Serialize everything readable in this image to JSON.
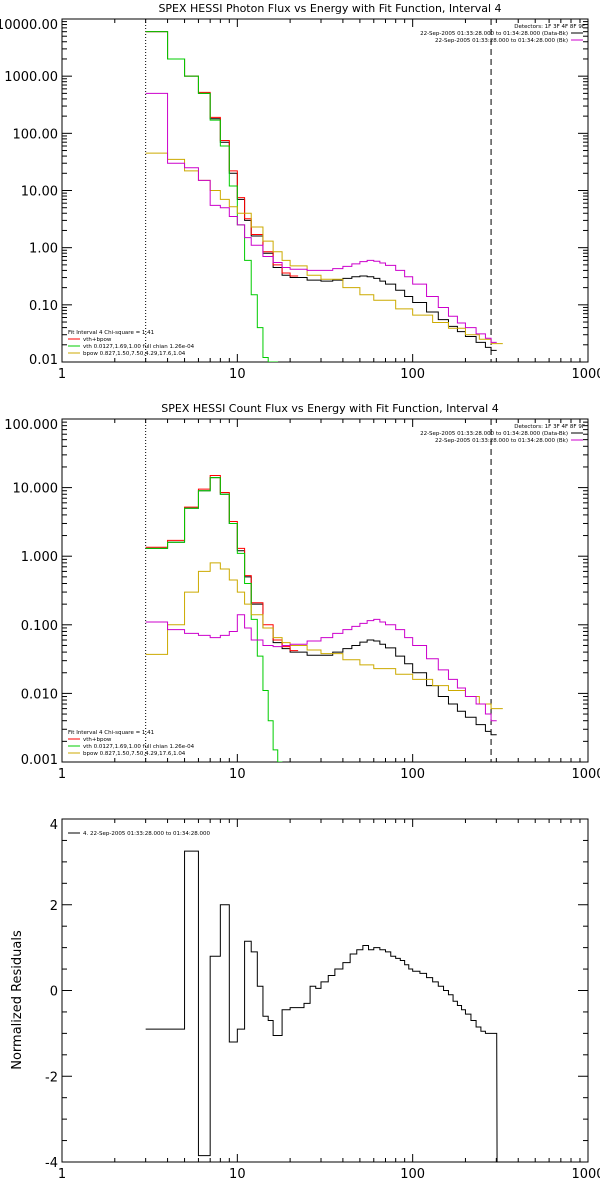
{
  "chart_data": [
    {
      "type": "line",
      "title": "SPEX HESSI Photon Flux vs Energy with Fit Function, Interval 4",
      "xscale": "log",
      "yscale": "log",
      "xlim": [
        1,
        1000
      ],
      "ylim": [
        0.01,
        10000
      ],
      "xticks": [
        1,
        10,
        100,
        1000
      ],
      "xtick_labels": [
        "1",
        "10",
        "100",
        "1000"
      ],
      "yticks": [
        0.01,
        0.1,
        1,
        10,
        100,
        1000,
        10000
      ],
      "ytick_labels": [
        "0.01",
        "0.10",
        "1.00",
        "10.00",
        "100.00",
        "1000.00",
        "10000.00"
      ],
      "vlines": [
        {
          "x": 3.0,
          "style": "dotted",
          "color": "#000000"
        },
        {
          "x": 280,
          "style": "dashed",
          "color": "#000000"
        }
      ],
      "legend_top_right": {
        "header": "Detectors: 1F 3F 4F 8F 9F",
        "lines": [
          {
            "text": "22-Sep-2005 01:33:28.000 to 01:34:28.000 (Data-Bk)",
            "color": "#000000"
          },
          {
            "text": "22-Sep-2005 01:33:28.000 to 01:34:28.000 (Bk)",
            "color": "#cc00cc"
          }
        ]
      },
      "legend_bottom_left": {
        "header": "Fit Interval 4   Chi-square = 1.41",
        "lines": [
          {
            "text": "vth+bpow",
            "color": "#ff0000"
          },
          {
            "text": "vth 0.0127,1.69,1.00  full chian 1.26e-04",
            "color": "#00cc00"
          },
          {
            "text": "bpow 0.827,1.50,7.50,4.29,17.6,1.04",
            "color": "#ccaa00"
          }
        ]
      },
      "series": [
        {
          "name": "Data-Bk",
          "color": "#000000",
          "step": true,
          "x": [
            3,
            4,
            5,
            6,
            7,
            8,
            9,
            10,
            11,
            12,
            14,
            16,
            18,
            20,
            25,
            30,
            35,
            40,
            45,
            50,
            55,
            60,
            65,
            70,
            80,
            90,
            100,
            120,
            140,
            160,
            180,
            200,
            230,
            260,
            280
          ],
          "y": [
            6000,
            2000,
            1000,
            500,
            180,
            70,
            20,
            7,
            3,
            1.6,
            0.8,
            0.45,
            0.33,
            0.3,
            0.27,
            0.26,
            0.27,
            0.29,
            0.31,
            0.32,
            0.31,
            0.29,
            0.26,
            0.23,
            0.18,
            0.14,
            0.11,
            0.075,
            0.055,
            0.042,
            0.034,
            0.028,
            0.022,
            0.018,
            0.016
          ]
        },
        {
          "name": "vth+bpow",
          "color": "#ff0000",
          "step": true,
          "x": [
            3,
            4,
            5,
            6,
            7,
            8,
            9,
            10,
            11,
            12,
            14,
            16,
            18,
            20
          ],
          "y": [
            6000,
            2000,
            1000,
            520,
            190,
            75,
            22,
            7.5,
            3.2,
            1.7,
            0.85,
            0.5,
            0.36,
            0.32
          ]
        },
        {
          "name": "vth",
          "color": "#00cc00",
          "step": true,
          "x": [
            3,
            4,
            5,
            6,
            7,
            8,
            9,
            10,
            11,
            12,
            13,
            14,
            15,
            16
          ],
          "y": [
            6000,
            2000,
            1000,
            500,
            170,
            60,
            12,
            2.5,
            0.6,
            0.15,
            0.04,
            0.012,
            0.01,
            0.01
          ]
        },
        {
          "name": "bpow",
          "color": "#ccaa00",
          "step": true,
          "x": [
            3,
            4,
            5,
            6,
            7,
            8,
            9,
            10,
            12,
            14,
            16,
            18,
            20,
            25,
            30,
            40,
            50,
            60,
            80,
            100,
            130,
            160,
            200,
            240,
            280
          ],
          "y": [
            45,
            35,
            22,
            15,
            10,
            7,
            5.2,
            4,
            2.3,
            1.3,
            0.85,
            0.6,
            0.48,
            0.33,
            0.28,
            0.2,
            0.15,
            0.12,
            0.085,
            0.066,
            0.049,
            0.039,
            0.03,
            0.025,
            0.021
          ]
        },
        {
          "name": "Bk",
          "color": "#cc00cc",
          "step": true,
          "x": [
            3,
            4,
            5,
            6,
            7,
            8,
            9,
            10,
            11,
            12,
            14,
            16,
            18,
            20,
            25,
            30,
            35,
            40,
            45,
            50,
            55,
            60,
            65,
            70,
            80,
            90,
            100,
            120,
            140,
            160,
            180,
            200,
            230,
            260,
            280
          ],
          "y": [
            500,
            30,
            25,
            15,
            5.5,
            5,
            3.5,
            2.5,
            1.5,
            1.1,
            0.7,
            0.55,
            0.45,
            0.42,
            0.4,
            0.4,
            0.43,
            0.47,
            0.52,
            0.57,
            0.6,
            0.58,
            0.54,
            0.49,
            0.4,
            0.31,
            0.23,
            0.14,
            0.09,
            0.063,
            0.048,
            0.04,
            0.031,
            0.026,
            0.022
          ]
        }
      ]
    },
    {
      "type": "line",
      "title": "SPEX HESSI Count Flux vs Energy with Fit Function, Interval 4",
      "xscale": "log",
      "yscale": "log",
      "xlim": [
        1,
        1000
      ],
      "ylim": [
        0.001,
        100
      ],
      "xticks": [
        1,
        10,
        100,
        1000
      ],
      "xtick_labels": [
        "1",
        "10",
        "100",
        "1000"
      ],
      "yticks": [
        0.001,
        0.01,
        0.1,
        1,
        10,
        100
      ],
      "ytick_labels": [
        "0.001",
        "0.010",
        "0.100",
        "1.000",
        "10.000",
        "100.000"
      ],
      "vlines": [
        {
          "x": 3.0,
          "style": "dotted",
          "color": "#000000"
        },
        {
          "x": 280,
          "style": "dashed",
          "color": "#000000"
        }
      ],
      "legend_top_right": {
        "header": "Detectors: 1F 3F 4F 8F 9F",
        "lines": [
          {
            "text": "22-Sep-2005 01:33:28.000 to 01:34:28.000 (Data-Bk)",
            "color": "#000000"
          },
          {
            "text": "22-Sep-2005 01:33:28.000 to 01:34:28.000 (Bk)",
            "color": "#cc00cc"
          }
        ]
      },
      "legend_bottom_left": {
        "header": "Fit Interval 4   Chi-square = 1.41",
        "lines": [
          {
            "text": "vth+bpow",
            "color": "#ff0000"
          },
          {
            "text": "vth 0.0127,1.69,1.00  full chian 1.26e-04",
            "color": "#00cc00"
          },
          {
            "text": "bpow 0.827,1.50,7.50,4.29,17.6,1.04",
            "color": "#ccaa00"
          }
        ]
      },
      "series": [
        {
          "name": "Data-Bk",
          "color": "#000000",
          "step": true,
          "x": [
            3,
            4,
            5,
            6,
            7,
            8,
            9,
            10,
            11,
            12,
            14,
            16,
            18,
            20,
            25,
            30,
            35,
            40,
            45,
            50,
            55,
            60,
            65,
            70,
            80,
            90,
            100,
            120,
            140,
            160,
            180,
            200,
            230,
            260,
            280
          ],
          "y": [
            1.3,
            1.6,
            5,
            9,
            14,
            8,
            3,
            1.2,
            0.5,
            0.2,
            0.09,
            0.055,
            0.045,
            0.04,
            0.036,
            0.036,
            0.04,
            0.045,
            0.05,
            0.056,
            0.06,
            0.058,
            0.052,
            0.046,
            0.035,
            0.027,
            0.02,
            0.013,
            0.009,
            0.007,
            0.0055,
            0.0045,
            0.0035,
            0.0028,
            0.0025
          ]
        },
        {
          "name": "vth+bpow",
          "color": "#ff0000",
          "step": true,
          "x": [
            3,
            4,
            5,
            6,
            7,
            8,
            9,
            10,
            11,
            12,
            14,
            16,
            18,
            20
          ],
          "y": [
            1.35,
            1.7,
            5.2,
            9.5,
            15,
            8.5,
            3.2,
            1.3,
            0.52,
            0.21,
            0.1,
            0.06,
            0.048,
            0.042
          ]
        },
        {
          "name": "vth",
          "color": "#00cc00",
          "step": true,
          "x": [
            3,
            4,
            5,
            6,
            7,
            8,
            9,
            10,
            11,
            12,
            13,
            14,
            15,
            16,
            17
          ],
          "y": [
            1.3,
            1.6,
            5,
            9,
            14,
            8,
            3,
            1.1,
            0.4,
            0.12,
            0.035,
            0.011,
            0.004,
            0.0015,
            0.001
          ]
        },
        {
          "name": "bpow",
          "color": "#ccaa00",
          "step": true,
          "x": [
            3,
            4,
            5,
            6,
            7,
            8,
            9,
            10,
            11,
            12,
            14,
            16,
            18,
            20,
            25,
            30,
            40,
            50,
            60,
            80,
            100,
            130,
            160,
            200,
            240,
            280
          ],
          "y": [
            0.037,
            0.1,
            0.3,
            0.6,
            0.8,
            0.65,
            0.45,
            0.3,
            0.2,
            0.14,
            0.09,
            0.065,
            0.055,
            0.05,
            0.043,
            0.038,
            0.031,
            0.026,
            0.023,
            0.019,
            0.016,
            0.013,
            0.011,
            0.009,
            0.007,
            0.006
          ]
        },
        {
          "name": "Bk",
          "color": "#cc00cc",
          "step": true,
          "x": [
            3,
            4,
            5,
            6,
            7,
            8,
            9,
            10,
            11,
            12,
            14,
            16,
            18,
            20,
            25,
            30,
            35,
            40,
            45,
            50,
            55,
            60,
            65,
            70,
            80,
            90,
            100,
            120,
            140,
            160,
            180,
            200,
            230,
            260,
            280
          ],
          "y": [
            0.11,
            0.085,
            0.075,
            0.07,
            0.065,
            0.07,
            0.08,
            0.14,
            0.09,
            0.06,
            0.05,
            0.048,
            0.05,
            0.052,
            0.058,
            0.065,
            0.075,
            0.085,
            0.095,
            0.105,
            0.115,
            0.12,
            0.11,
            0.1,
            0.085,
            0.065,
            0.05,
            0.032,
            0.022,
            0.016,
            0.012,
            0.009,
            0.007,
            0.005,
            0.004
          ]
        }
      ]
    },
    {
      "type": "line",
      "title": "",
      "xscale": "log",
      "yscale": "linear",
      "xlim": [
        1,
        1000
      ],
      "ylim": [
        -4,
        4
      ],
      "ylabel": "Normalized Residuals",
      "xticks": [
        1,
        10,
        100,
        1000
      ],
      "xtick_labels": [
        "1",
        "10",
        "100",
        "1000"
      ],
      "yticks": [
        -4,
        -2,
        0,
        2,
        4
      ],
      "ytick_labels": [
        "-4",
        "-2",
        "0",
        "2",
        "4"
      ],
      "legend_top_left": {
        "lines": [
          {
            "text": "4. 22-Sep-2005 01:33:28.000 to 01:34:28.000",
            "color": "#000000"
          }
        ]
      },
      "series": [
        {
          "name": "4. 22-Sep-2005 01:33:28.000 to 01:34:28.000",
          "color": "#000000",
          "step": true,
          "x": [
            3,
            4,
            5,
            6,
            7,
            8,
            9,
            10,
            11,
            12,
            13,
            14,
            15,
            16,
            18,
            20,
            22,
            24,
            26,
            28,
            30,
            33,
            36,
            40,
            44,
            48,
            52,
            56,
            60,
            65,
            70,
            75,
            80,
            85,
            90,
            95,
            100,
            110,
            120,
            130,
            140,
            150,
            160,
            170,
            180,
            190,
            200,
            215,
            230,
            245,
            260,
            280
          ],
          "y": [
            -0.9,
            -0.9,
            3.25,
            -3.85,
            0.8,
            2.0,
            -1.2,
            -0.9,
            1.15,
            0.9,
            0.1,
            -0.6,
            -0.7,
            -1.05,
            -0.45,
            -0.4,
            -0.4,
            -0.3,
            0.1,
            0.05,
            0.2,
            0.35,
            0.5,
            0.65,
            0.85,
            0.95,
            1.05,
            0.95,
            1.0,
            0.95,
            0.9,
            0.8,
            0.75,
            0.7,
            0.6,
            0.5,
            0.45,
            0.4,
            0.3,
            0.2,
            0.1,
            0.0,
            -0.1,
            -0.25,
            -0.35,
            -0.45,
            -0.55,
            -0.7,
            -0.85,
            -0.95,
            -1.0,
            -1.0
          ]
        }
      ]
    }
  ]
}
